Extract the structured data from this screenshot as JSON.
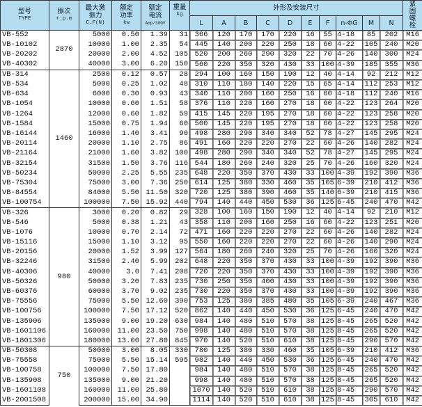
{
  "header": {
    "type_cn": "型号",
    "type_en": "TYPE",
    "rpm_cn": "振次",
    "rpm_en": "r.p.m",
    "force_cn": "最大激振力",
    "force_en": "C.F(N)",
    "power_cn": "额定功率",
    "power_en": "kw",
    "current_cn": "额定电流",
    "current_en": "Amp/380V",
    "weight_cn": "重量",
    "weight_en": "kg",
    "dims_title": "外形及安装尺寸",
    "dims": [
      "L",
      "A",
      "B",
      "C",
      "D",
      "E",
      "F",
      "n-ΦG",
      "M",
      "N"
    ],
    "bolt": "紧固螺栓"
  },
  "header_color": "#b5ddf1",
  "groups": [
    {
      "rpm": "2870",
      "rows": [
        [
          "VB-552",
          "5000",
          "0.50",
          "1.39",
          "31",
          "366",
          "120",
          "170",
          "170",
          "220",
          "16",
          "55",
          "4-18",
          "85",
          "202",
          "M16"
        ],
        [
          "VB-10102",
          "10000",
          "1.00",
          "2.35",
          "54",
          "445",
          "140",
          "200",
          "220",
          "250",
          "18",
          "60",
          "4-22",
          "105",
          "240",
          "M20"
        ],
        [
          "VB-20202",
          "20000",
          "2.00",
          "4.52",
          "105",
          "520",
          "200",
          "260",
          "290",
          "320",
          "22",
          "70",
          "4-26",
          "140",
          "300",
          "M24"
        ],
        [
          "VB-40302",
          "40000",
          "3.00",
          "6.20",
          "150",
          "560",
          "220",
          "350",
          "320",
          "430",
          "33",
          "100",
          "4-39",
          "185",
          "355",
          "M36"
        ]
      ]
    },
    {
      "rpm": "1460",
      "rows": [
        [
          "VB-314",
          "2500",
          "0.12",
          "0.57",
          "28",
          "294",
          "100",
          "160",
          "150",
          "190",
          "12",
          "40",
          "4-14",
          "92",
          "212",
          "M12"
        ],
        [
          "VB-534",
          "5000",
          "0.25",
          "1.02",
          "48",
          "310",
          "110",
          "180",
          "140",
          "220",
          "15",
          "65",
          "4-14",
          "112",
          "253",
          "M12"
        ],
        [
          "VB-634",
          "6000",
          "0.30",
          "0.93",
          "43",
          "340",
          "110",
          "200",
          "160",
          "250",
          "16",
          "60",
          "4-18",
          "112",
          "240",
          "M16"
        ],
        [
          "VB-1054",
          "10000",
          "0.60",
          "1.51",
          "58",
          "376",
          "110",
          "220",
          "160",
          "270",
          "18",
          "60",
          "4-22",
          "123",
          "264",
          "M20"
        ],
        [
          "VB-1264",
          "12000",
          "0.60",
          "1.82",
          "59",
          "415",
          "145",
          "220",
          "195",
          "270",
          "18",
          "60",
          "4-22",
          "123",
          "258",
          "M20"
        ],
        [
          "VB-1584",
          "15000",
          "0.75",
          "1.94",
          "60",
          "500",
          "145",
          "220",
          "195",
          "270",
          "18",
          "60",
          "4-22",
          "123",
          "258",
          "M20"
        ],
        [
          "VB-16144",
          "16000",
          "1.40",
          "3.41",
          "90",
          "498",
          "280",
          "290",
          "340",
          "340",
          "52",
          "78",
          "4-27",
          "145",
          "295",
          "M24"
        ],
        [
          "VB-20114",
          "20000",
          "1.10",
          "2.75",
          "86",
          "491",
          "160",
          "220",
          "220",
          "270",
          "22",
          "60",
          "4-26",
          "140",
          "282",
          "M24"
        ],
        [
          "VB-21164",
          "21000",
          "1.60",
          "3.82",
          "100",
          "498",
          "280",
          "290",
          "340",
          "340",
          "52",
          "78",
          "4-27",
          "145",
          "295",
          "M24"
        ],
        [
          "VB-32154",
          "31500",
          "1.50",
          "3.76",
          "116",
          "544",
          "180",
          "260",
          "240",
          "320",
          "25",
          "70",
          "4-26",
          "160",
          "320",
          "M24"
        ],
        [
          "VB-50234",
          "50000",
          "2.25",
          "5.55",
          "235",
          "648",
          "220",
          "350",
          "370",
          "430",
          "33",
          "100",
          "4-39",
          "192",
          "390",
          "M36"
        ],
        [
          "VB-75304",
          "75000",
          "3.00",
          "7.36",
          "250",
          "614",
          "125",
          "380",
          "330",
          "460",
          "35",
          "105",
          "6-39",
          "210",
          "412",
          "M36"
        ],
        [
          "VB-84554",
          "84000",
          "5.50",
          "11.50",
          "320",
          "720",
          "125",
          "380",
          "390",
          "460",
          "35",
          "140",
          "6-39",
          "210",
          "415",
          "M36"
        ],
        [
          "VB-100754",
          "100000",
          "7.50",
          "15.92",
          "440",
          "794",
          "140",
          "440",
          "450",
          "530",
          "36",
          "125",
          "6-45",
          "240",
          "470",
          "M42"
        ]
      ]
    },
    {
      "rpm": "980",
      "rows": [
        [
          "VB-326",
          "3000",
          "0.20",
          "0.82",
          "29",
          "328",
          "100",
          "160",
          "150",
          "190",
          "12",
          "40",
          "4-14",
          "92",
          "210",
          "M12"
        ],
        [
          "VB-546",
          "5000",
          "0.38",
          "1.21",
          "43",
          "358",
          "110",
          "200",
          "160",
          "250",
          "16",
          "60",
          "4-22",
          "123",
          "251",
          "M20"
        ],
        [
          "VB-1076",
          "10000",
          "0.70",
          "2.14",
          "72",
          "471",
          "160",
          "220",
          "220",
          "270",
          "22",
          "60",
          "4-26",
          "140",
          "282",
          "M24"
        ],
        [
          "VB-15116",
          "15000",
          "1.10",
          "3.12",
          "95",
          "550",
          "160",
          "220",
          "220",
          "270",
          "22",
          "60",
          "4-26",
          "140",
          "290",
          "M24"
        ],
        [
          "VB-20156",
          "20000",
          "1.52",
          "3.99",
          "127",
          "564",
          "180",
          "260",
          "240",
          "320",
          "25",
          "70",
          "4-26",
          "160",
          "320",
          "M24"
        ],
        [
          "VB-32246",
          "31500",
          "2.40",
          "5.99",
          "202",
          "648",
          "220",
          "350",
          "370",
          "430",
          "33",
          "100",
          "4-39",
          "192",
          "390",
          "M36"
        ],
        [
          "VB-40306",
          "40000",
          "3.0",
          "7.41",
          "208",
          "720",
          "220",
          "350",
          "370",
          "430",
          "33",
          "100",
          "4-39",
          "192",
          "390",
          "M36"
        ],
        [
          "VB-50326",
          "50000",
          "3.20",
          "7.83",
          "235",
          "730",
          "250",
          "350",
          "400",
          "430",
          "33",
          "100",
          "4-39",
          "192",
          "390",
          "M36"
        ],
        [
          "VB-60376",
          "60000",
          "3.70",
          "9.02",
          "235",
          "730",
          "220",
          "350",
          "370",
          "430",
          "33",
          "100",
          "4-39",
          "192",
          "390",
          "M36"
        ],
        [
          "VB-75556",
          "75000",
          "5.50",
          "12.60",
          "390",
          "753",
          "125",
          "380",
          "385",
          "480",
          "35",
          "105",
          "6-39",
          "240",
          "467",
          "M36"
        ],
        [
          "VB-100756",
          "100000",
          "7.50",
          "17.12",
          "520",
          "862",
          "140",
          "440",
          "450",
          "530",
          "36",
          "125",
          "6-45",
          "240",
          "470",
          "M42"
        ],
        [
          "VB-135906",
          "135000",
          "9.00",
          "19.20",
          "630",
          "984",
          "140",
          "480",
          "510",
          "570",
          "38",
          "125",
          "8-45",
          "265",
          "520",
          "M42"
        ],
        [
          "VB-1601106",
          "160000",
          "11.00",
          "23.50",
          "750",
          "998",
          "140",
          "480",
          "510",
          "570",
          "38",
          "125",
          "8-45",
          "265",
          "520",
          "M42"
        ],
        [
          "VB-1801306",
          "180000",
          "13.00",
          "27.80",
          "845",
          "970",
          "140",
          "520",
          "510",
          "610",
          "38",
          "125",
          "8-45",
          "290",
          "570",
          "M42"
        ]
      ]
    },
    {
      "rpm": "750",
      "rows": [
        [
          "VB-50308",
          "50000",
          "3.00",
          "8.05",
          "330",
          "780",
          "125",
          "380",
          "330",
          "460",
          "35",
          "105",
          "6-39",
          "210",
          "412",
          "M36"
        ],
        [
          "VB-75558",
          "75000",
          "5.50",
          "15.14",
          "595",
          "982",
          "140",
          "440",
          "450",
          "530",
          "36",
          "125",
          "6-45",
          "240",
          "470",
          "M42"
        ],
        [
          "VB-100758",
          "100000",
          "7.50",
          "17.80",
          "",
          "984",
          "140",
          "480",
          "510",
          "570",
          "38",
          "125",
          "8-45",
          "265",
          "520",
          "M42"
        ],
        [
          "VB-135908",
          "135000",
          "9.00",
          "21.20",
          "",
          "998",
          "140",
          "480",
          "510",
          "570",
          "38",
          "125",
          "8-45",
          "265",
          "520",
          "M42"
        ],
        [
          "VB-1601108",
          "160000",
          "11.00",
          "25.80",
          "",
          "1070",
          "140",
          "520",
          "510",
          "610",
          "38",
          "125",
          "8-45",
          "290",
          "570",
          "M42"
        ],
        [
          "VB-2001508",
          "200000",
          "15.00",
          "34.90",
          "",
          "1114",
          "140",
          "520",
          "510",
          "610",
          "38",
          "125",
          "8-45",
          "305",
          "610",
          "M42"
        ]
      ]
    }
  ]
}
